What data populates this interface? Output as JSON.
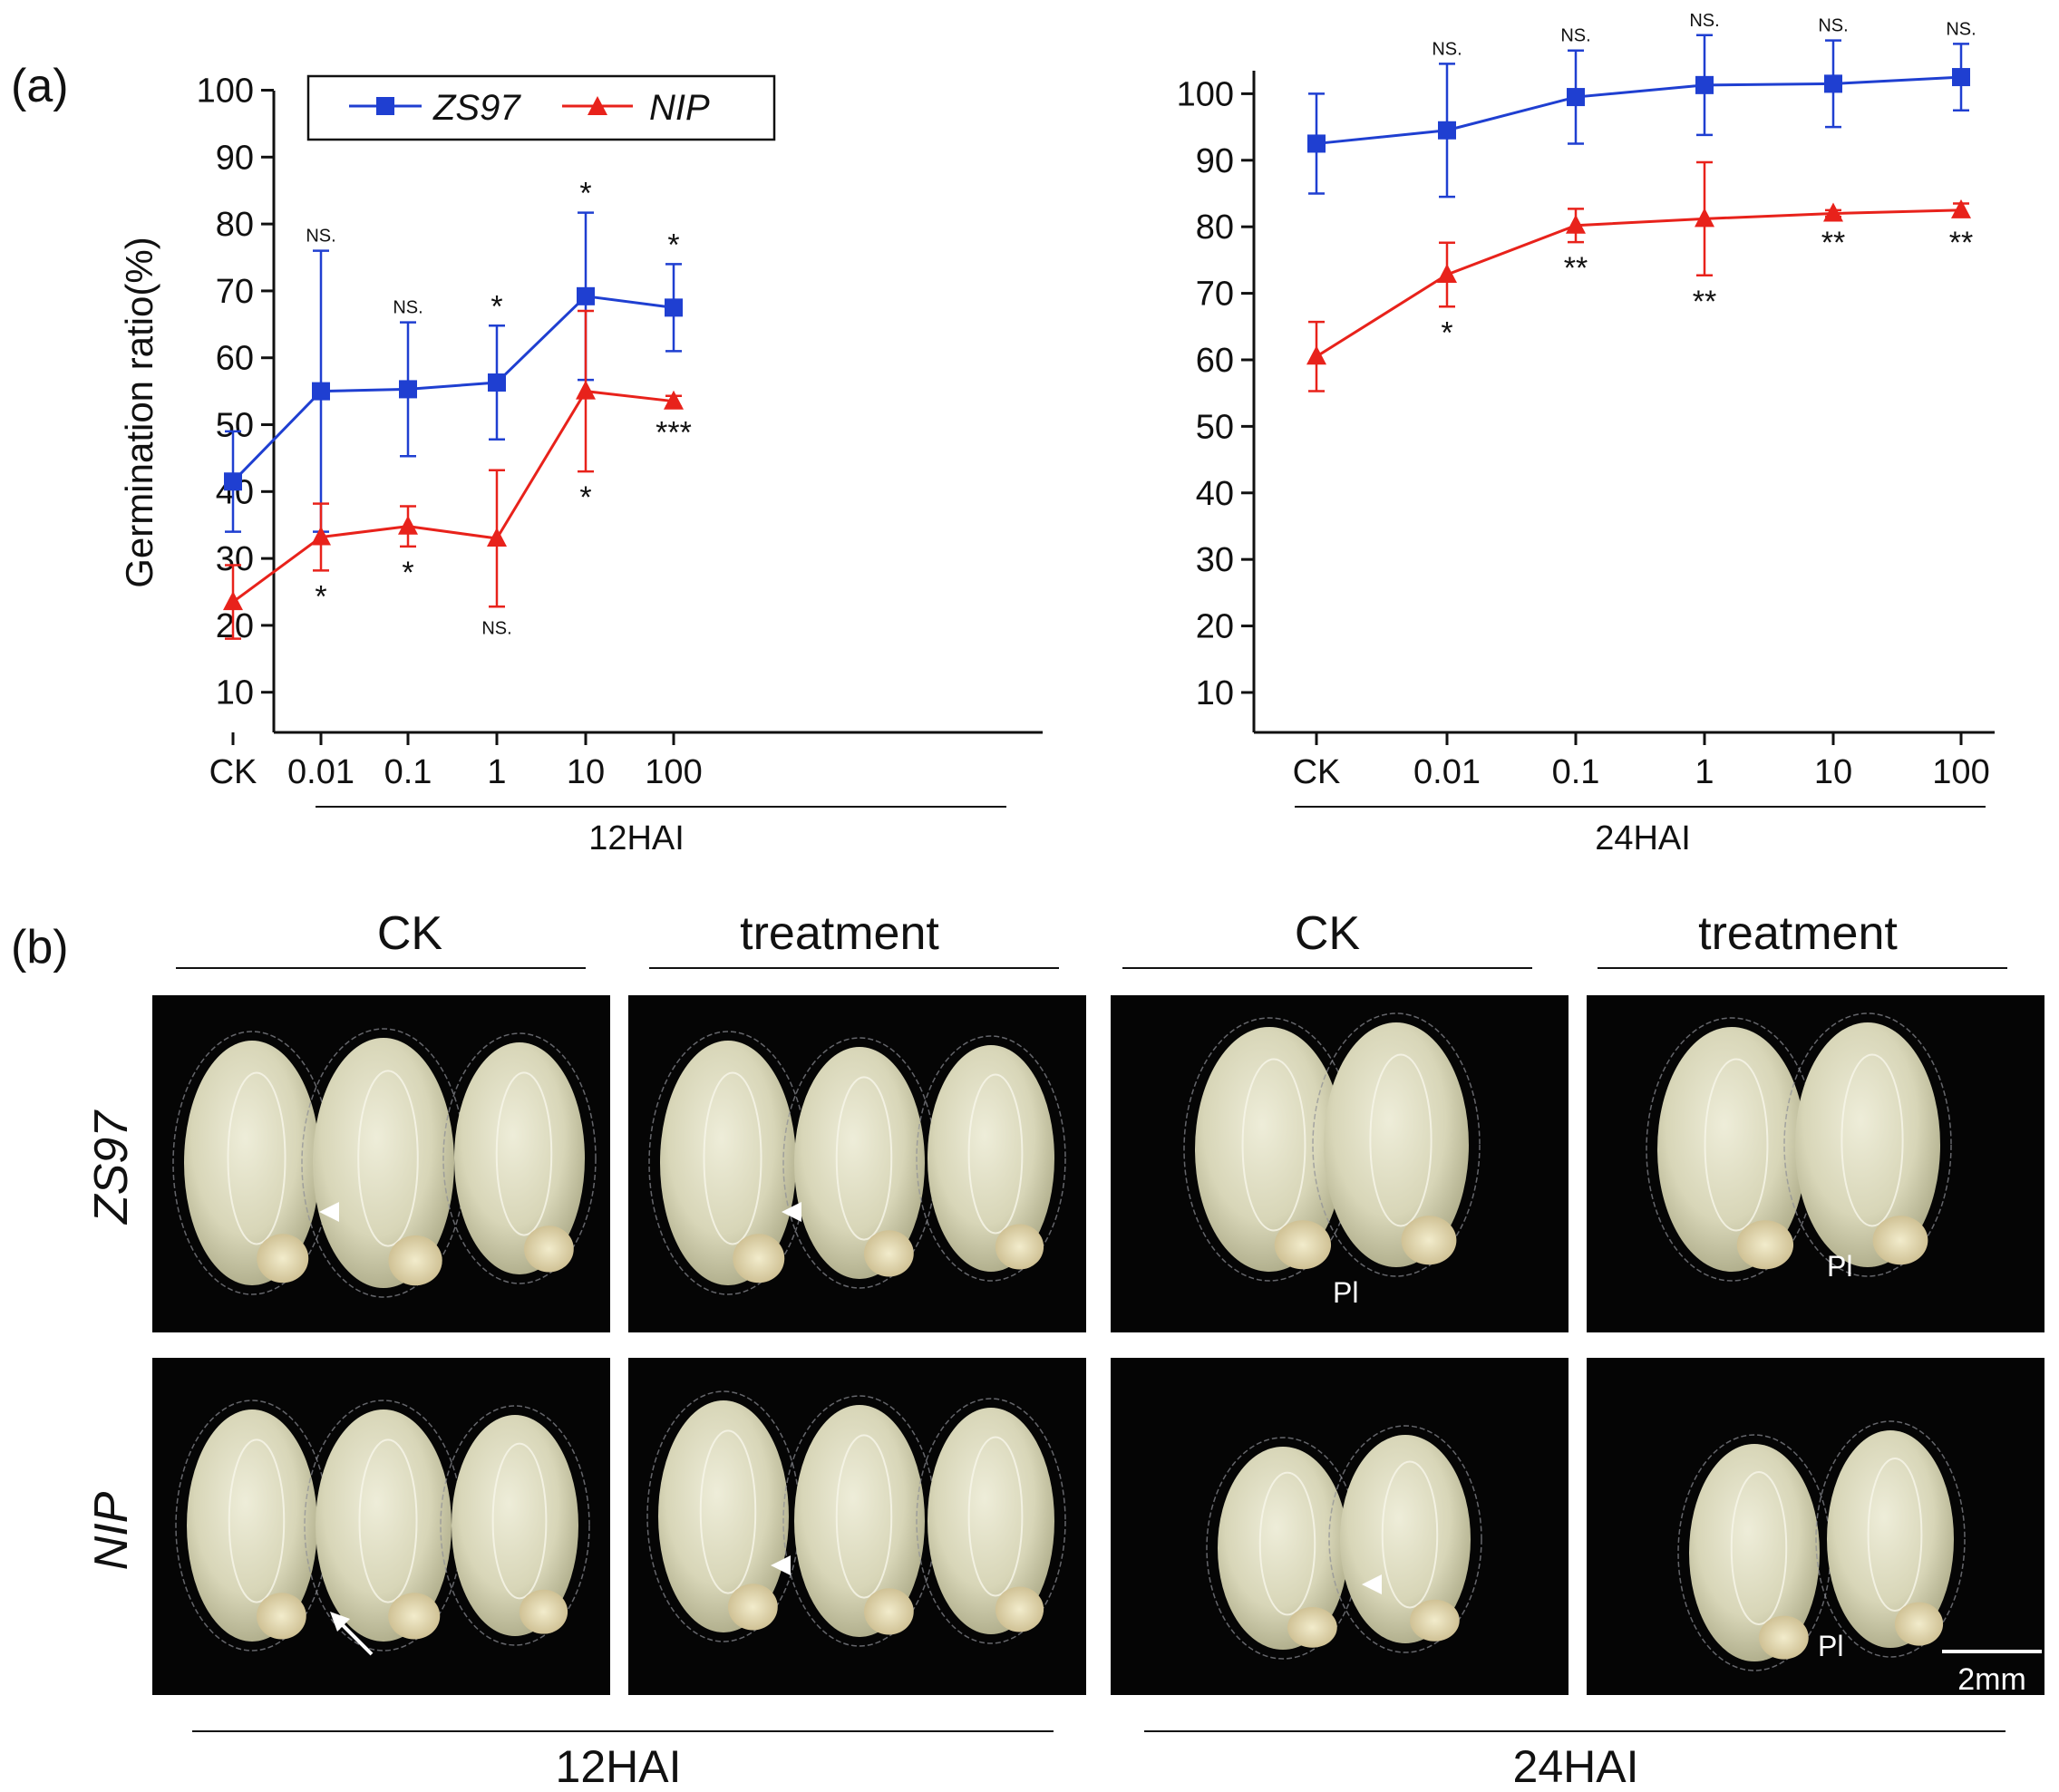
{
  "panel_a_label": "(a)",
  "panel_b_label": "(b)",
  "chart_data": [
    {
      "type": "line",
      "group_label": "12HAI",
      "ylabel": "Germination ratio(%)",
      "categories": [
        "CK",
        "0.01",
        "0.1",
        "1",
        "10",
        "100"
      ],
      "y_ticks": [
        "10",
        "20",
        "30",
        "40",
        "50",
        "60",
        "70",
        "80",
        "90",
        "100"
      ],
      "ylim": [
        4,
        104
      ],
      "legend_position": "top-left",
      "series": [
        {
          "name": "ZS97",
          "color": "#1f3fd1",
          "marker": "square",
          "values": [
            41.5,
            55,
            55.3,
            56.3,
            69.2,
            67.5
          ],
          "errors": [
            7.5,
            21,
            10,
            8.5,
            12.5,
            6.5
          ],
          "labels": [
            "",
            "NS.",
            "NS.",
            "*",
            "*",
            "*"
          ]
        },
        {
          "name": "NIP",
          "color": "#e8221b",
          "marker": "triangle",
          "values": [
            23.5,
            33.2,
            34.8,
            33,
            55,
            53.5
          ],
          "errors": [
            5.5,
            5,
            3,
            10.2,
            12,
            0.8
          ],
          "labels": [
            "",
            "*",
            "*",
            "NS.",
            "*",
            "***"
          ]
        }
      ]
    },
    {
      "type": "line",
      "group_label": "24HAI",
      "ylabel": "",
      "categories": [
        "CK",
        "0.01",
        "0.1",
        "1",
        "10",
        "100"
      ],
      "y_ticks": [
        "10",
        "20",
        "30",
        "40",
        "50",
        "60",
        "70",
        "80",
        "90",
        "100"
      ],
      "ylim": [
        4,
        110
      ],
      "series": [
        {
          "name": "ZS97",
          "color": "#1f3fd1",
          "marker": "square",
          "values": [
            92.5,
            94.5,
            99.5,
            101.3,
            101.5,
            102.5
          ],
          "errors": [
            7.5,
            10,
            7,
            7.5,
            6.5,
            5
          ],
          "labels": [
            "",
            "NS.",
            "NS.",
            "NS.",
            "NS.",
            "NS."
          ]
        },
        {
          "name": "NIP",
          "color": "#e8221b",
          "marker": "triangle",
          "values": [
            60.5,
            72.8,
            80.2,
            81.2,
            82,
            82.5
          ],
          "errors": [
            5.2,
            4.8,
            2.5,
            8.5,
            0.5,
            1
          ],
          "labels": [
            "",
            "*",
            "**",
            "**",
            "**",
            "**"
          ]
        }
      ]
    }
  ],
  "photo_panel": {
    "column_headers": [
      "CK",
      "treatment",
      "CK",
      "treatment"
    ],
    "row_labels": [
      "ZS97",
      "NIP"
    ],
    "pl_label": "Pl",
    "scale_bar": "2mm",
    "bottom_groups": [
      "12HAI",
      "24HAI"
    ]
  }
}
